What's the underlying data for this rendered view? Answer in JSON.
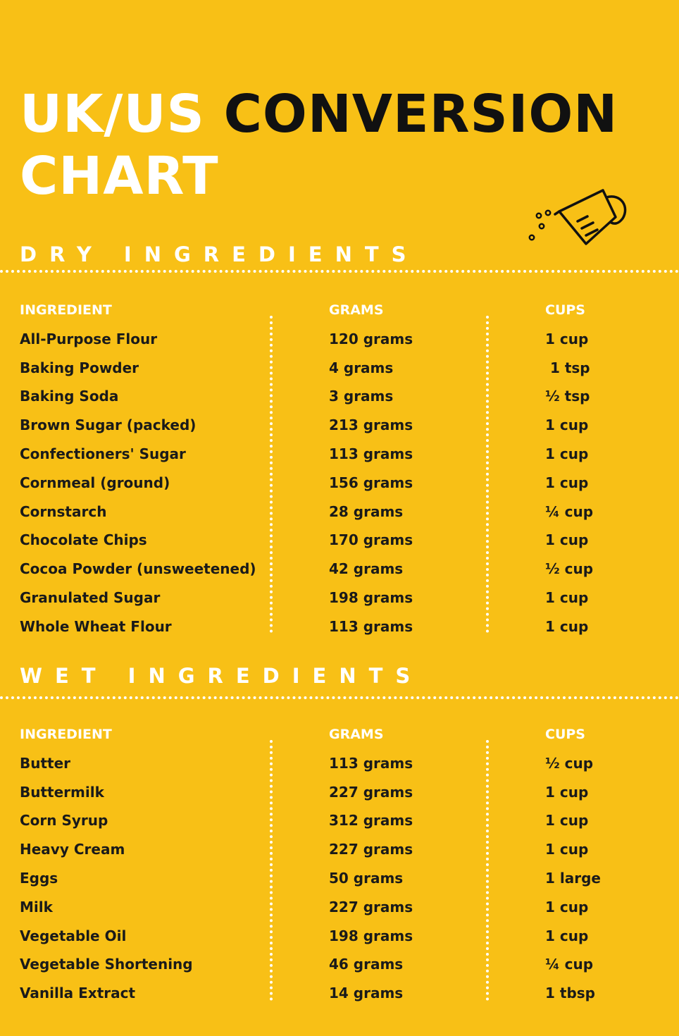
{
  "header": {
    "title_part1": "UK/US",
    "title_part2": "CONVERSION",
    "title_part3": "CHART",
    "icon": "measuring-cup-icon"
  },
  "columns": {
    "ingredient": "INGREDIENT",
    "grams": "GRAMS",
    "cups": "CUPS"
  },
  "dry": {
    "title": "DRY INGREDIENTS",
    "rows": [
      {
        "ingredient": "All-Purpose Flour",
        "grams": "120 grams",
        "cups": "1 cup"
      },
      {
        "ingredient": "Baking Powder",
        "grams": "4 grams",
        "cups": " 1 tsp"
      },
      {
        "ingredient": "Baking Soda",
        "grams": "3 grams",
        "cups": "½ tsp"
      },
      {
        "ingredient": "Brown Sugar (packed)",
        "grams": "213 grams",
        "cups": "1 cup"
      },
      {
        "ingredient": "Confectioners' Sugar",
        "grams": "113 grams",
        "cups": "1 cup"
      },
      {
        "ingredient": "Cornmeal (ground)",
        "grams": "156 grams",
        "cups": "1 cup"
      },
      {
        "ingredient": "Cornstarch",
        "grams": "28 grams",
        "cups": "¼ cup"
      },
      {
        "ingredient": "Chocolate Chips",
        "grams": "170 grams",
        "cups": "1 cup"
      },
      {
        "ingredient": "Cocoa Powder (unsweetened)",
        "grams": "42 grams",
        "cups": "½ cup"
      },
      {
        "ingredient": "Granulated Sugar",
        "grams": "198 grams",
        "cups": "1 cup"
      },
      {
        "ingredient": "Whole Wheat Flour",
        "grams": "113 grams",
        "cups": "1 cup"
      }
    ]
  },
  "wet": {
    "title": "WET INGREDIENTS",
    "rows": [
      {
        "ingredient": "Butter",
        "grams": "113 grams",
        "cups": "½ cup"
      },
      {
        "ingredient": "Buttermilk",
        "grams": "227 grams",
        "cups": "1 cup"
      },
      {
        "ingredient": "Corn Syrup",
        "grams": "312 grams",
        "cups": "1 cup"
      },
      {
        "ingredient": "Heavy Cream",
        "grams": "227 grams",
        "cups": "1 cup"
      },
      {
        "ingredient": "Eggs",
        "grams": "50 grams",
        "cups": "1 large"
      },
      {
        "ingredient": "Milk",
        "grams": "227 grams",
        "cups": "1 cup"
      },
      {
        "ingredient": "Vegetable Oil",
        "grams": "198 grams",
        "cups": "1 cup"
      },
      {
        "ingredient": "Vegetable Shortening",
        "grams": "46 grams",
        "cups": "¼ cup"
      },
      {
        "ingredient": "Vanilla Extract",
        "grams": "14 grams",
        "cups": "1 tbsp"
      }
    ]
  }
}
